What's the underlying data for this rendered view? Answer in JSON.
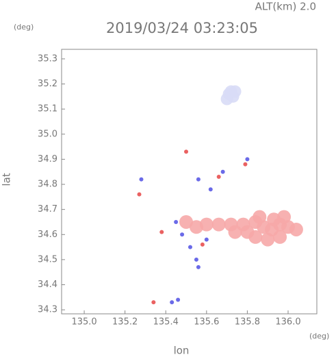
{
  "chart_data": {
    "type": "scatter",
    "title": "2019/03/24 03:23:05",
    "subtitle": "ALT(km) 2.0",
    "y_unit": "(deg)",
    "x_unit": "(deg)",
    "xlabel": "lon",
    "ylabel": "lat",
    "xlim": [
      134.889,
      136.141
    ],
    "ylim": [
      34.284,
      35.338
    ],
    "xticks": [
      {
        "value": 135,
        "label": "135.0"
      },
      135.2,
      135.4,
      135.6,
      135.8,
      {
        "value": 136,
        "label": "136.0"
      }
    ],
    "yticks": [
      34.3,
      34.4,
      34.5,
      34.6,
      34.7,
      34.8,
      34.9,
      {
        "value": 35,
        "label": "35.0"
      },
      35.1,
      35.2,
      35.3
    ],
    "series": [
      {
        "color": "#f6a8a8",
        "x": [
          135.72,
          135.78,
          135.84,
          135.88,
          135.92,
          135.96,
          136.0,
          135.84,
          135.9,
          135.96,
          135.66,
          135.6,
          135.55,
          135.5,
          135.98,
          135.86,
          135.93,
          135.8,
          135.74,
          136.04
        ],
        "y": [
          34.64,
          34.64,
          34.65,
          34.63,
          34.62,
          34.64,
          34.63,
          34.59,
          34.58,
          34.59,
          34.64,
          34.64,
          34.63,
          34.65,
          34.67,
          34.67,
          34.66,
          34.61,
          34.61,
          34.62
        ]
      },
      {
        "color": "#d8dcf6",
        "x": [
          135.71,
          135.73,
          135.7,
          135.72,
          135.74
        ],
        "y": [
          35.16,
          35.15,
          35.14,
          35.17,
          35.17
        ]
      },
      {
        "color": "#5a5ae6",
        "x": [
          135.52,
          135.56,
          135.55,
          135.45,
          135.62,
          135.68,
          135.56,
          135.46,
          135.43,
          135.8,
          135.28,
          135.6,
          135.48
        ],
        "y": [
          34.55,
          34.47,
          34.5,
          34.65,
          34.78,
          34.85,
          34.82,
          34.34,
          34.33,
          34.9,
          34.82,
          34.58,
          34.6
        ]
      },
      {
        "color": "#e85050",
        "x": [
          135.34,
          135.5,
          135.38,
          135.58,
          135.66,
          135.79,
          135.27
        ],
        "y": [
          34.33,
          34.93,
          34.61,
          34.56,
          34.83,
          34.88,
          34.76
        ]
      }
    ]
  }
}
